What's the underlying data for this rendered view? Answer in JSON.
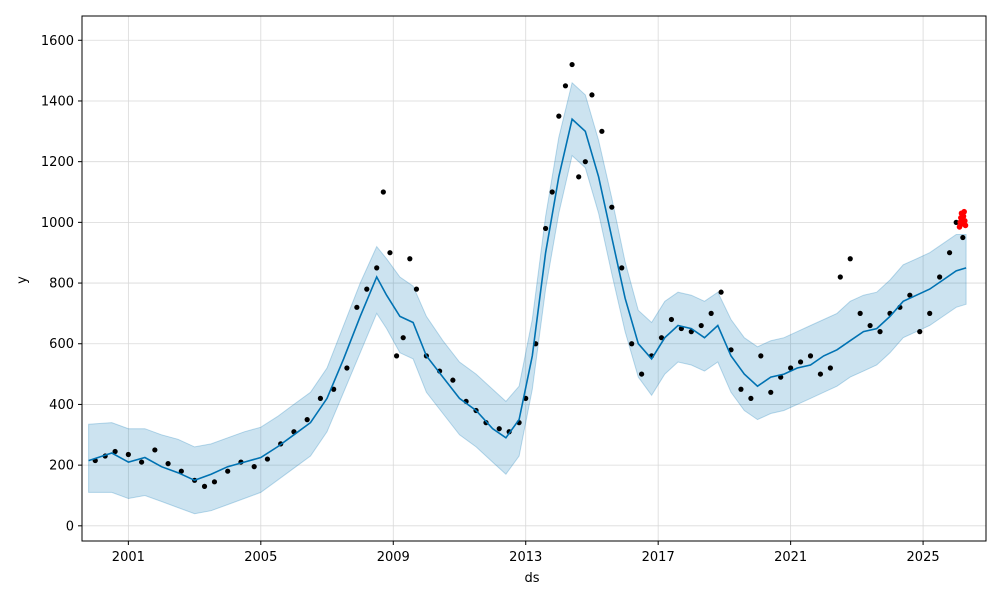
{
  "chart_data": {
    "type": "line",
    "title": "",
    "xlabel": "ds",
    "ylabel": "y",
    "xlim": [
      1999.6,
      2026.9
    ],
    "ylim": [
      -50,
      1680
    ],
    "grid": true,
    "x_ticks": [
      2001,
      2005,
      2009,
      2013,
      2017,
      2021,
      2025
    ],
    "x_tick_labels": [
      "2001",
      "2005",
      "2009",
      "2013",
      "2017",
      "2021",
      "2025"
    ],
    "y_ticks": [
      0,
      200,
      400,
      600,
      800,
      1000,
      1200,
      1400,
      1600
    ],
    "y_tick_labels": [
      "0",
      "200",
      "400",
      "600",
      "800",
      "1000",
      "1200",
      "1400",
      "1600"
    ],
    "colors": {
      "observed": "#000000",
      "forecast": "#0072b2",
      "interval": "#0072b2",
      "holdout": "#ff0000",
      "grid": "#d9d9d9"
    },
    "series": [
      {
        "kind": "observed",
        "x": [
          2000.0,
          2000.3,
          2000.6,
          2001.0,
          2001.4,
          2001.8,
          2002.2,
          2002.6,
          2003.0,
          2003.3,
          2003.6,
          2004.0,
          2004.4,
          2004.8,
          2005.2,
          2005.6,
          2006.0,
          2006.4,
          2006.8,
          2007.2,
          2007.6,
          2007.9,
          2008.2,
          2008.5,
          2008.7,
          2008.9,
          2009.1,
          2009.3,
          2009.5,
          2009.7,
          2010.0,
          2010.4,
          2010.8,
          2011.2,
          2011.5,
          2011.8,
          2012.2,
          2012.5,
          2012.8,
          2013.0,
          2013.3,
          2013.6,
          2013.8,
          2014.0,
          2014.2,
          2014.4,
          2014.6,
          2014.8,
          2015.0,
          2015.3,
          2015.6,
          2015.9,
          2016.2,
          2016.5,
          2016.8,
          2017.1,
          2017.4,
          2017.7,
          2018.0,
          2018.3,
          2018.6,
          2018.9,
          2019.2,
          2019.5,
          2019.8,
          2020.1,
          2020.4,
          2020.7,
          2021.0,
          2021.3,
          2021.6,
          2021.9,
          2022.2,
          2022.5,
          2022.8,
          2023.1,
          2023.4,
          2023.7,
          2024.0,
          2024.3,
          2024.6,
          2024.9,
          2025.2,
          2025.5,
          2025.8,
          2026.0,
          2026.2
        ],
        "y": [
          215,
          230,
          245,
          235,
          210,
          250,
          205,
          180,
          150,
          130,
          145,
          180,
          210,
          195,
          220,
          270,
          310,
          350,
          420,
          450,
          520,
          720,
          780,
          850,
          1100,
          900,
          560,
          620,
          880,
          780,
          560,
          510,
          480,
          410,
          380,
          340,
          320,
          310,
          340,
          420,
          600,
          980,
          1100,
          1350,
          1450,
          1520,
          1150,
          1200,
          1420,
          1300,
          1050,
          850,
          600,
          500,
          560,
          620,
          680,
          650,
          640,
          660,
          700,
          770,
          580,
          450,
          420,
          560,
          440,
          490,
          520,
          540,
          560,
          500,
          520,
          820,
          880,
          700,
          660,
          640,
          700,
          720,
          760,
          640,
          700,
          820,
          900,
          1000,
          950
        ]
      },
      {
        "kind": "forecast",
        "x": [
          1999.8,
          2000.5,
          2001.0,
          2001.5,
          2002.0,
          2002.5,
          2003.0,
          2003.5,
          2004.0,
          2004.5,
          2005.0,
          2005.5,
          2006.0,
          2006.5,
          2007.0,
          2007.5,
          2008.0,
          2008.5,
          2008.8,
          2009.2,
          2009.6,
          2010.0,
          2010.5,
          2011.0,
          2011.5,
          2012.0,
          2012.4,
          2012.8,
          2013.2,
          2013.6,
          2014.0,
          2014.4,
          2014.8,
          2015.2,
          2015.6,
          2016.0,
          2016.4,
          2016.8,
          2017.2,
          2017.6,
          2018.0,
          2018.4,
          2018.8,
          2019.2,
          2019.6,
          2020.0,
          2020.4,
          2020.8,
          2021.2,
          2021.6,
          2022.0,
          2022.4,
          2022.8,
          2023.2,
          2023.6,
          2024.0,
          2024.4,
          2024.8,
          2025.2,
          2025.6,
          2026.0,
          2026.3
        ],
        "y": [
          215,
          240,
          210,
          225,
          195,
          175,
          150,
          170,
          195,
          210,
          225,
          260,
          300,
          340,
          420,
          550,
          690,
          820,
          760,
          690,
          670,
          560,
          490,
          420,
          380,
          320,
          290,
          350,
          560,
          900,
          1150,
          1340,
          1300,
          1150,
          950,
          750,
          600,
          550,
          620,
          660,
          650,
          620,
          660,
          560,
          500,
          460,
          490,
          500,
          520,
          530,
          560,
          580,
          610,
          640,
          650,
          690,
          740,
          760,
          780,
          810,
          840,
          850
        ]
      },
      {
        "kind": "interval_upper",
        "x": [
          1999.8,
          2000.5,
          2001.0,
          2001.5,
          2002.0,
          2002.5,
          2003.0,
          2003.5,
          2004.0,
          2004.5,
          2005.0,
          2005.5,
          2006.0,
          2006.5,
          2007.0,
          2007.5,
          2008.0,
          2008.5,
          2008.8,
          2009.2,
          2009.6,
          2010.0,
          2010.5,
          2011.0,
          2011.5,
          2012.0,
          2012.4,
          2012.8,
          2013.2,
          2013.6,
          2014.0,
          2014.4,
          2014.8,
          2015.2,
          2015.6,
          2016.0,
          2016.4,
          2016.8,
          2017.2,
          2017.6,
          2018.0,
          2018.4,
          2018.8,
          2019.2,
          2019.6,
          2020.0,
          2020.4,
          2020.8,
          2021.2,
          2021.6,
          2022.0,
          2022.4,
          2022.8,
          2023.2,
          2023.6,
          2024.0,
          2024.4,
          2024.8,
          2025.2,
          2025.6,
          2026.0,
          2026.3
        ],
        "y": [
          335,
          340,
          320,
          320,
          300,
          285,
          260,
          270,
          290,
          310,
          325,
          360,
          400,
          440,
          520,
          660,
          800,
          920,
          880,
          820,
          790,
          690,
          610,
          540,
          500,
          450,
          410,
          460,
          680,
          1020,
          1280,
          1460,
          1420,
          1270,
          1080,
          870,
          710,
          670,
          740,
          770,
          760,
          740,
          770,
          680,
          620,
          590,
          610,
          620,
          640,
          660,
          680,
          700,
          740,
          760,
          770,
          810,
          860,
          880,
          900,
          930,
          960,
          960
        ]
      },
      {
        "kind": "interval_lower",
        "x": [
          1999.8,
          2000.5,
          2001.0,
          2001.5,
          2002.0,
          2002.5,
          2003.0,
          2003.5,
          2004.0,
          2004.5,
          2005.0,
          2005.5,
          2006.0,
          2006.5,
          2007.0,
          2007.5,
          2008.0,
          2008.5,
          2008.8,
          2009.2,
          2009.6,
          2010.0,
          2010.5,
          2011.0,
          2011.5,
          2012.0,
          2012.4,
          2012.8,
          2013.2,
          2013.6,
          2014.0,
          2014.4,
          2014.8,
          2015.2,
          2015.6,
          2016.0,
          2016.4,
          2016.8,
          2017.2,
          2017.6,
          2018.0,
          2018.4,
          2018.8,
          2019.2,
          2019.6,
          2020.0,
          2020.4,
          2020.8,
          2021.2,
          2021.6,
          2022.0,
          2022.4,
          2022.8,
          2023.2,
          2023.6,
          2024.0,
          2024.4,
          2024.8,
          2025.2,
          2025.6,
          2026.0,
          2026.3
        ],
        "y": [
          110,
          110,
          90,
          100,
          80,
          60,
          40,
          50,
          70,
          90,
          110,
          150,
          190,
          230,
          310,
          440,
          570,
          700,
          650,
          570,
          550,
          440,
          370,
          300,
          260,
          210,
          170,
          230,
          450,
          780,
          1030,
          1220,
          1180,
          1030,
          830,
          640,
          490,
          430,
          500,
          540,
          530,
          510,
          540,
          440,
          380,
          350,
          370,
          380,
          400,
          420,
          440,
          460,
          490,
          510,
          530,
          570,
          620,
          640,
          660,
          690,
          720,
          730
        ]
      },
      {
        "kind": "holdout",
        "x": [
          2026.1,
          2026.12,
          2026.14,
          2026.16,
          2026.18,
          2026.2,
          2026.22,
          2026.24,
          2026.26,
          2026.28
        ],
        "y": [
          985,
          1000,
          1015,
          1030,
          1010,
          995,
          1020,
          1035,
          1005,
          990
        ]
      }
    ]
  }
}
